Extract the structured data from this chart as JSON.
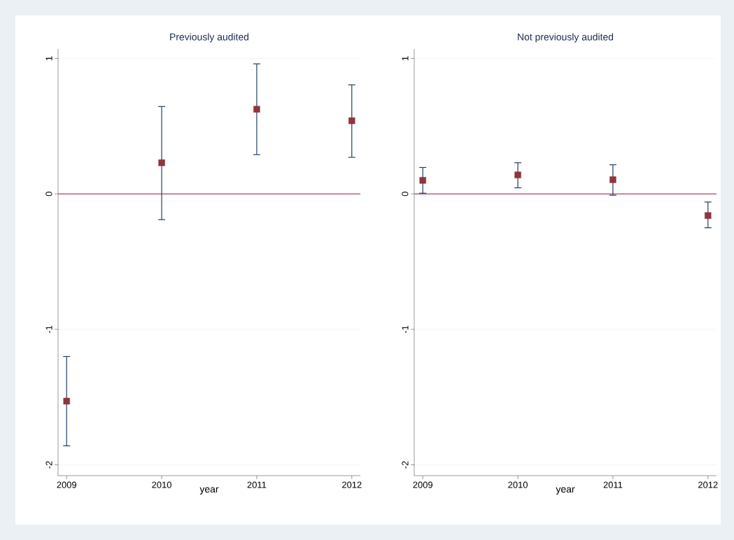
{
  "chart_data": [
    {
      "type": "scatter",
      "title": "Previously audited",
      "xlabel": "year",
      "x": [
        2009,
        2010,
        2011,
        2012
      ],
      "marker": "square",
      "series": [
        {
          "color": "#90353b",
          "values": [
            -1.53,
            0.23,
            0.625,
            0.54
          ],
          "errors": [
            [
              -1.86,
              -1.2
            ],
            [
              -0.19,
              0.645
            ],
            [
              0.29,
              0.96
            ],
            [
              0.27,
              0.805
            ]
          ]
        }
      ],
      "xlim": [
        2008.91,
        2012.09
      ],
      "ylim": [
        -2.08,
        1.07
      ],
      "xticks": [
        2009,
        2010,
        2011,
        2012
      ],
      "yticks": [
        -2,
        -1,
        0,
        1
      ],
      "grid": "y",
      "ref_lines": [
        {
          "axis": "y",
          "value": 0,
          "color": "#9b1c3c"
        }
      ]
    },
    {
      "type": "scatter",
      "title": "Not previously audited",
      "xlabel": "year",
      "x": [
        2009,
        2010,
        2011,
        2012
      ],
      "marker": "square",
      "series": [
        {
          "color": "#90353b",
          "values": [
            0.1,
            0.14,
            0.105,
            -0.16
          ],
          "errors": [
            [
              0.005,
              0.195
            ],
            [
              0.045,
              0.23
            ],
            [
              -0.01,
              0.215
            ],
            [
              -0.25,
              -0.06
            ]
          ]
        }
      ],
      "xlim": [
        2008.91,
        2012.09
      ],
      "ylim": [
        -2.08,
        1.07
      ],
      "xticks": [
        2009,
        2010,
        2011,
        2012
      ],
      "yticks": [
        -2,
        -1,
        0,
        1
      ],
      "grid": "y",
      "ref_lines": [
        {
          "axis": "y",
          "value": 0,
          "color": "#9b1c3c"
        }
      ]
    }
  ]
}
